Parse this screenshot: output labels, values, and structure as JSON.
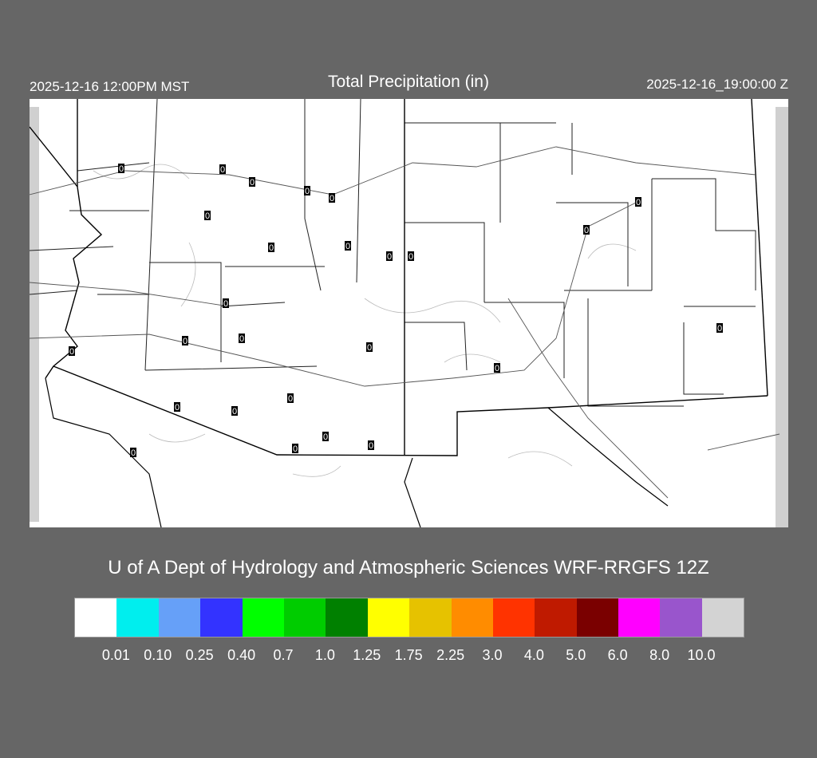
{
  "header": {
    "left_time": "2025-12-16 12:00PM MST",
    "title": "Total Precipitation (in)",
    "right_time": "2025-12-16_19:00:00 Z"
  },
  "credit": "U of A Dept of Hydrology and Atmospheric Sciences WRF-RRGFS 12Z",
  "legend": {
    "colors": [
      "#ffffff",
      "#00eeee",
      "#66a0f8",
      "#3333ff",
      "#00ff00",
      "#00cc00",
      "#008000",
      "#ffff00",
      "#e6c200",
      "#ff8c00",
      "#ff3300",
      "#bf1a00",
      "#7a0000",
      "#ff00ff",
      "#9955cc",
      "#d3d3d3"
    ],
    "labels": [
      "0.01",
      "0.10",
      "0.25",
      "0.40",
      "0.7",
      "1.0",
      "1.25",
      "1.75",
      "2.25",
      "3.0",
      "4.0",
      "5.0",
      "6.0",
      "8.0",
      "10.0"
    ]
  },
  "stations": {
    "values": [
      "0",
      "0",
      "0",
      "0",
      "0",
      "0",
      "0",
      "0",
      "0",
      "0",
      "0",
      "0",
      "0",
      "0",
      "0",
      "0",
      "0",
      "0",
      "0",
      "0",
      "0",
      "0",
      "0",
      "0",
      "0",
      "0"
    ]
  }
}
